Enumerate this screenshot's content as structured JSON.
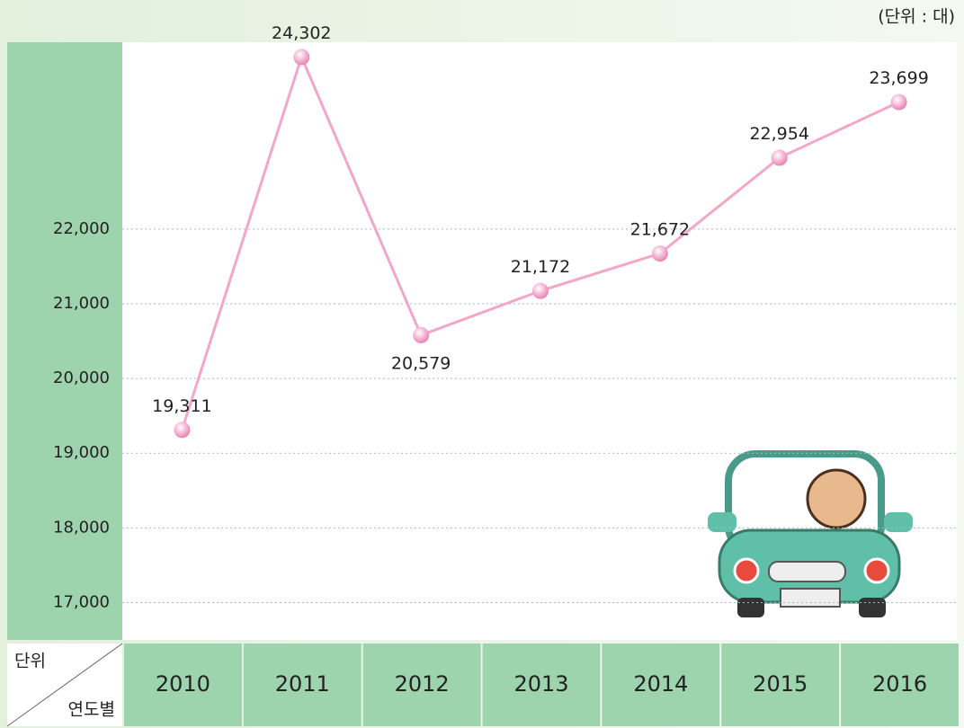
{
  "chart_data": {
    "type": "line",
    "unit_note": "(단위 : 대)",
    "corner_top": "단위",
    "corner_bottom": "연도별",
    "categories": [
      "2010",
      "2011",
      "2012",
      "2013",
      "2014",
      "2015",
      "2016"
    ],
    "values": [
      19311,
      24302,
      20579,
      21172,
      21672,
      22954,
      23699
    ],
    "value_labels": [
      "19,311",
      "24,302",
      "20,579",
      "21,172",
      "21,672",
      "22,954",
      "23,699"
    ],
    "color": "#f2a6c8",
    "ylim": [
      16500,
      24500
    ],
    "yticks": [
      {
        "value": 17000,
        "label": "17,000"
      },
      {
        "value": 18000,
        "label": "18,000"
      },
      {
        "value": 19000,
        "label": "19,000"
      },
      {
        "value": 20000,
        "label": "20,000"
      },
      {
        "value": 21000,
        "label": "21,000"
      },
      {
        "value": 22000,
        "label": "22,000"
      }
    ],
    "grid": true
  }
}
